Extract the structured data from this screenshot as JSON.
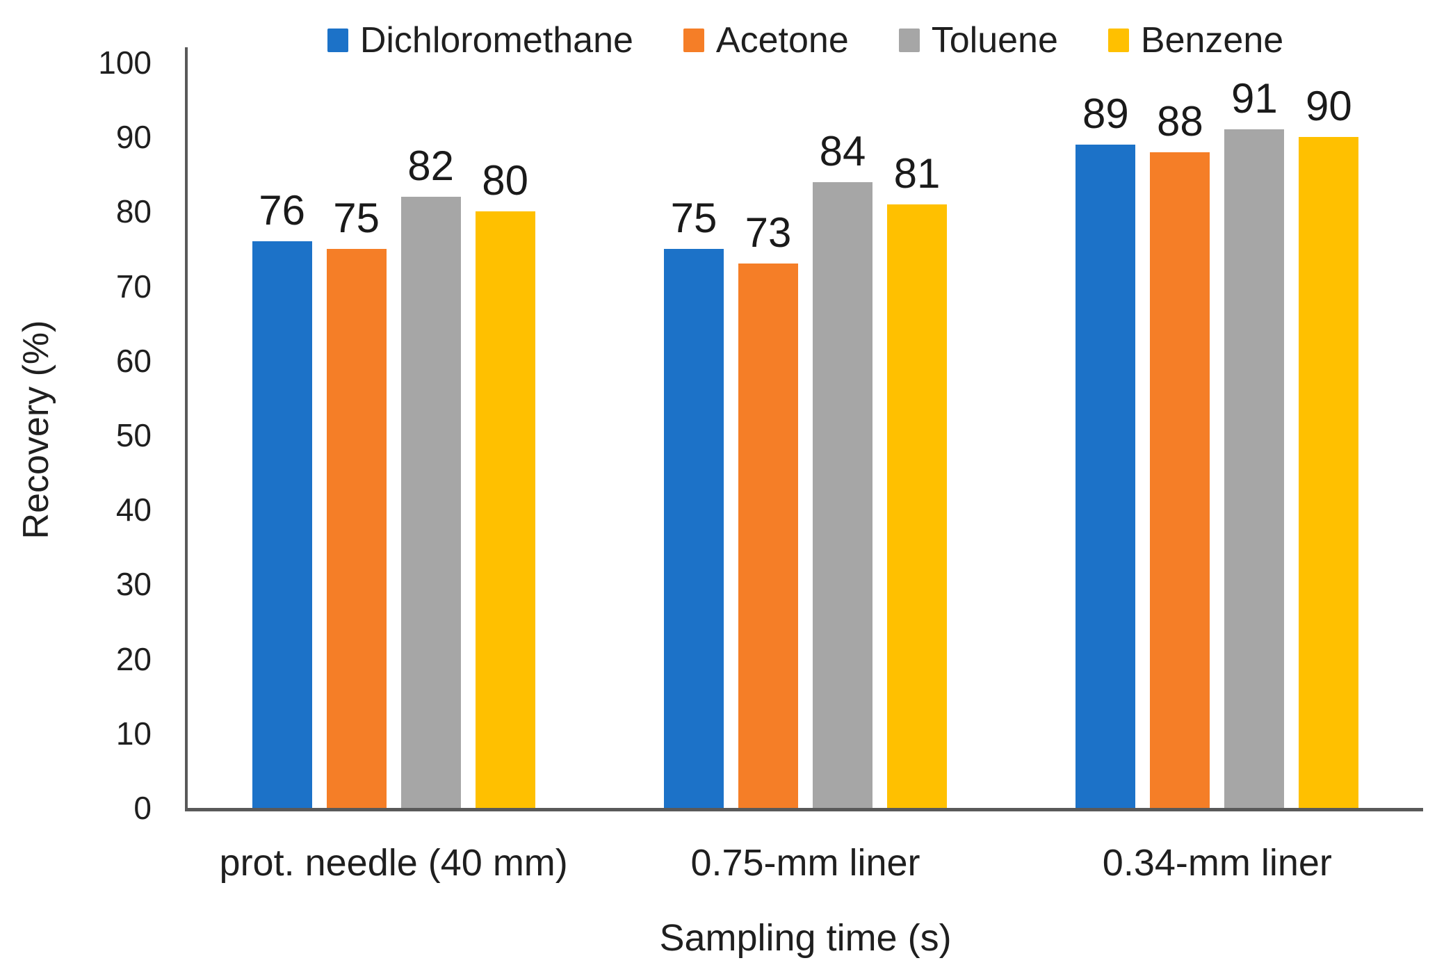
{
  "chart_data": {
    "type": "bar",
    "title": "",
    "xlabel": "Sampling time (s)",
    "ylabel": "Recovery (%)",
    "ylim": [
      0,
      100
    ],
    "yticks": [
      0,
      10,
      20,
      30,
      40,
      50,
      60,
      70,
      80,
      90,
      100
    ],
    "grid": false,
    "legend_position": "top",
    "bar_value_labels_shown": true,
    "categories": [
      "prot. needle (40 mm)",
      "0.75-mm liner",
      "0.34-mm liner"
    ],
    "series": [
      {
        "name": "Dichloromethane",
        "color": "#1C72C8",
        "values": [
          76,
          75,
          89
        ]
      },
      {
        "name": "Acetone",
        "color": "#F57E27",
        "values": [
          75,
          73,
          88
        ]
      },
      {
        "name": "Toluene",
        "color": "#A6A6A6",
        "values": [
          82,
          84,
          91
        ]
      },
      {
        "name": "Benzene",
        "color": "#FFC000",
        "values": [
          80,
          81,
          90
        ]
      }
    ]
  },
  "colors": {
    "axis_line": "#595959",
    "text": "#1F1F1F",
    "background": "#FFFFFF"
  }
}
